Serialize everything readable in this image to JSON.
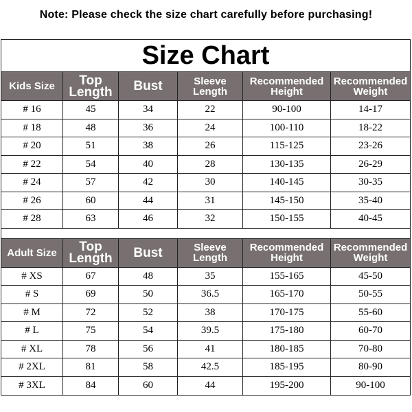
{
  "note": "Note: Please check the size chart carefully before purchasing!",
  "title": "Size Chart",
  "header_color": "#787070",
  "kids": {
    "headers": [
      "Kids Size",
      "Top Length",
      "Bust",
      "Sleeve Length",
      "Recommended Height",
      "Recommended Weight"
    ],
    "rows": [
      [
        "# 16",
        "45",
        "34",
        "22",
        "90-100",
        "14-17"
      ],
      [
        "# 18",
        "48",
        "36",
        "24",
        "100-110",
        "18-22"
      ],
      [
        "# 20",
        "51",
        "38",
        "26",
        "115-125",
        "23-26"
      ],
      [
        "# 22",
        "54",
        "40",
        "28",
        "130-135",
        "26-29"
      ],
      [
        "# 24",
        "57",
        "42",
        "30",
        "140-145",
        "30-35"
      ],
      [
        "# 26",
        "60",
        "44",
        "31",
        "145-150",
        "35-40"
      ],
      [
        "# 28",
        "63",
        "46",
        "32",
        "150-155",
        "40-45"
      ]
    ]
  },
  "adult": {
    "headers": [
      "Adult Size",
      "Top Length",
      "Bust",
      "Sleeve Length",
      "Recommended Height",
      "Recommended Weight"
    ],
    "rows": [
      [
        "# XS",
        "67",
        "48",
        "35",
        "155-165",
        "45-50"
      ],
      [
        "# S",
        "69",
        "50",
        "36.5",
        "165-170",
        "50-55"
      ],
      [
        "# M",
        "72",
        "52",
        "38",
        "170-175",
        "55-60"
      ],
      [
        "# L",
        "75",
        "54",
        "39.5",
        "175-180",
        "60-70"
      ],
      [
        "# XL",
        "78",
        "56",
        "41",
        "180-185",
        "70-80"
      ],
      [
        "# 2XL",
        "81",
        "58",
        "42.5",
        "185-195",
        "80-90"
      ],
      [
        "# 3XL",
        "84",
        "60",
        "44",
        "195-200",
        "90-100"
      ]
    ]
  }
}
